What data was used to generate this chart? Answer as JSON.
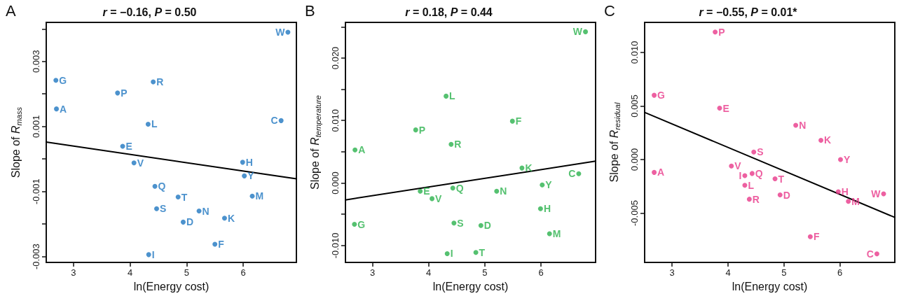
{
  "chart_data": [
    {
      "type": "scatter",
      "title": "r = −0.16, P = 0.50",
      "xlabel": "ln(Energy cost)",
      "ylabel": "Slope of R$_{mass}$",
      "annotations": [
        "A"
      ],
      "grid": false,
      "xlim": [
        2.52,
        6.94
      ],
      "xticks": [
        3,
        4,
        5,
        6
      ],
      "ylim": [
        -0.00318,
        0.0042
      ],
      "yticks": [
        {
          "value": 0.004,
          "label": null
        },
        0.003,
        {
          "value": 0.002,
          "label": null
        },
        0.001,
        {
          "value": 0,
          "label": null
        },
        -0.001,
        {
          "value": -0.002,
          "label": null
        },
        -0.003
      ],
      "series": [
        {
          "marker": "circle",
          "color": "#1f77c0",
          "x": [
            6.79,
            2.69,
            4.41,
            3.78,
            2.7,
            4.32,
            6.67,
            3.87,
            4.07,
            5.99,
            6.02,
            4.44,
            4.85,
            6.16,
            4.47,
            5.22,
            5.67,
            4.94,
            5.5,
            4.33
          ],
          "values": [
            0.0039,
            0.00242,
            0.00237,
            0.00203,
            0.00154,
            0.00107,
            0.00118,
            0.00039,
            -0.00012,
            -0.0001,
            -0.00052,
            -0.00084,
            -0.00117,
            -0.00114,
            -0.00153,
            -0.0016,
            -0.00182,
            -0.00194,
            -0.00262,
            -0.00294
          ],
          "value_labels": [
            "W",
            "G",
            "R",
            "P",
            "A",
            "L",
            "C",
            "E",
            "V",
            "H",
            "Y",
            "Q",
            "T",
            "M",
            "S",
            "N",
            "K",
            "D",
            "F",
            "I"
          ]
        },
        {
          "type": "line",
          "marker": "none",
          "color": "#000000",
          "x": [
            2.52,
            6.94
          ],
          "values": [
            0.00052,
            -0.00061
          ]
        }
      ]
    },
    {
      "type": "scatter",
      "title": "r = 0.18, P = 0.44",
      "xlabel": "ln(Energy cost)",
      "ylabel": "Slope of R$_{temperature}$",
      "annotations": [
        "B"
      ],
      "grid": false,
      "xlim": [
        2.52,
        6.97
      ],
      "xticks": [
        3,
        4,
        5,
        6
      ],
      "ylim": [
        -0.0127,
        0.0257
      ],
      "yticks": [
        {
          "value": 0.025,
          "label": null
        },
        {
          "value": 0.02,
          "label": "0.020"
        },
        {
          "value": 0.015,
          "label": null
        },
        {
          "value": 0.01,
          "label": "0.010"
        },
        {
          "value": 0.005,
          "label": null
        },
        {
          "value": 0,
          "label": "0.000"
        },
        {
          "value": -0.005,
          "label": null
        },
        {
          "value": -0.01,
          "label": "-0.010"
        }
      ],
      "series": [
        {
          "marker": "circle",
          "color": "#2bb24c",
          "x": [
            6.79,
            4.31,
            5.49,
            3.77,
            4.4,
            2.69,
            5.66,
            6.67,
            6.02,
            4.43,
            3.85,
            5.21,
            4.06,
            5.99,
            2.68,
            4.45,
            4.93,
            6.15,
            4.84,
            4.33
          ],
          "values": [
            0.0242,
            0.0139,
            0.0099,
            0.0085,
            0.0062,
            0.0053,
            0.0024,
            0.0015,
            -0.0003,
            -0.0008,
            -0.0013,
            -0.0013,
            -0.0025,
            -0.0041,
            -0.0066,
            -0.0064,
            -0.0068,
            -0.0081,
            -0.0111,
            -0.0113
          ],
          "value_labels": [
            "W",
            "L",
            "F",
            "P",
            "R",
            "A",
            "K",
            "C",
            "Y",
            "Q",
            "E",
            "N",
            "V",
            "H",
            "G",
            "S",
            "D",
            "M",
            "T",
            "I"
          ]
        },
        {
          "type": "line",
          "marker": "none",
          "color": "#000000",
          "x": [
            2.52,
            6.97
          ],
          "values": [
            -0.0027,
            0.0035
          ]
        }
      ]
    },
    {
      "type": "scatter",
      "title": "r = −0.55, P = 0.01*",
      "xlabel": "ln(Energy cost)",
      "ylabel": "Slope of R$_{residual}$",
      "annotations": [
        "C"
      ],
      "grid": false,
      "xlim": [
        2.51,
        6.98
      ],
      "xticks": [
        3,
        4,
        5,
        6
      ],
      "ylim": [
        -0.0096,
        0.0128
      ],
      "yticks": [
        {
          "value": 0.01,
          "label": "0.010"
        },
        0.005,
        {
          "value": 0,
          "label": "0.000"
        },
        -0.005
      ],
      "series": [
        {
          "marker": "circle",
          "color": "#e8388a",
          "x": [
            3.77,
            2.68,
            3.85,
            5.21,
            5.66,
            4.46,
            6.01,
            4.06,
            2.68,
            4.3,
            4.43,
            4.84,
            4.3,
            4.93,
            5.97,
            6.78,
            4.38,
            6.15,
            5.47,
            6.66
          ],
          "values": [
            0.0119,
            0.006,
            0.0048,
            0.0032,
            0.0018,
            0.0007,
            0.0,
            -0.0006,
            -0.0012,
            -0.0015,
            -0.0013,
            -0.0018,
            -0.0024,
            -0.0033,
            -0.003,
            -0.0032,
            -0.0037,
            -0.0039,
            -0.0072,
            -0.0088
          ],
          "value_labels": [
            "P",
            "G",
            "E",
            "N",
            "K",
            "S",
            "Y",
            "V",
            "A",
            "I",
            "Q",
            "T",
            "L",
            "D",
            "H",
            "W",
            "R",
            "M",
            "F",
            "C"
          ]
        },
        {
          "type": "line",
          "marker": "none",
          "color": "#000000",
          "x": [
            2.51,
            6.98
          ],
          "values": [
            0.0044,
            -0.0054
          ]
        }
      ]
    }
  ]
}
